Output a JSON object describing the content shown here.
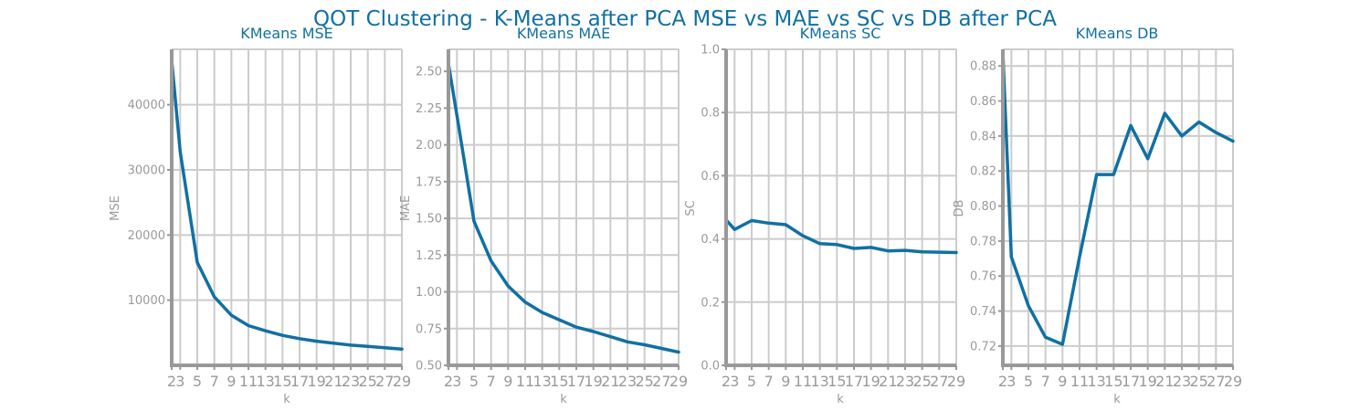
{
  "figure": {
    "title": "QOT Clustering - K-Means after PCA MSE vs MAE vs SC vs DB after PCA"
  },
  "chart_data": [
    {
      "type": "line",
      "title": "KMeans MSE",
      "xlabel": "k",
      "ylabel": "MSE",
      "x": [
        2,
        3,
        5,
        7,
        9,
        11,
        13,
        15,
        17,
        19,
        21,
        23,
        25,
        27,
        29
      ],
      "xticks": [
        2,
        3,
        5,
        7,
        9,
        11,
        13,
        15,
        17,
        19,
        21,
        23,
        25,
        27,
        29
      ],
      "xlim": [
        2,
        29
      ],
      "ylim": [
        0,
        48500
      ],
      "yticks": [
        10000,
        20000,
        30000,
        40000
      ],
      "ytick_labels": [
        "10000",
        "20000",
        "30000",
        "40000"
      ],
      "grid": true,
      "series": [
        {
          "values": [
            46800,
            32800,
            15800,
            10500,
            7700,
            6100,
            5300,
            4600,
            4100,
            3700,
            3400,
            3100,
            2900,
            2700,
            2500
          ]
        }
      ]
    },
    {
      "type": "line",
      "title": "KMeans MAE",
      "xlabel": "k",
      "ylabel": "MAE",
      "x": [
        2,
        3,
        5,
        7,
        9,
        11,
        13,
        15,
        17,
        19,
        21,
        23,
        25,
        27,
        29
      ],
      "xticks": [
        2,
        3,
        5,
        7,
        9,
        11,
        13,
        15,
        17,
        19,
        21,
        23,
        25,
        27,
        29
      ],
      "xlim": [
        2,
        29
      ],
      "ylim": [
        0.5,
        2.65
      ],
      "yticks": [
        0.5,
        0.75,
        1.0,
        1.25,
        1.5,
        1.75,
        2.0,
        2.25,
        2.5
      ],
      "ytick_labels": [
        "0.50",
        "0.75",
        "1.00",
        "1.25",
        "1.50",
        "1.75",
        "2.00",
        "2.25",
        "2.50"
      ],
      "grid": true,
      "series": [
        {
          "values": [
            2.55,
            2.2,
            1.48,
            1.21,
            1.04,
            0.93,
            0.86,
            0.81,
            0.76,
            0.73,
            0.695,
            0.66,
            0.64,
            0.615,
            0.59
          ]
        }
      ]
    },
    {
      "type": "line",
      "title": "KMeans SC",
      "xlabel": "k",
      "ylabel": "SC",
      "x": [
        2,
        3,
        5,
        7,
        9,
        11,
        13,
        15,
        17,
        19,
        21,
        23,
        25,
        27,
        29
      ],
      "xticks": [
        2,
        3,
        5,
        7,
        9,
        11,
        13,
        15,
        17,
        19,
        21,
        23,
        25,
        27,
        29
      ],
      "xlim": [
        2,
        29
      ],
      "ylim": [
        0.0,
        1.0
      ],
      "yticks": [
        0.0,
        0.2,
        0.4,
        0.6,
        0.8,
        1.0
      ],
      "ytick_labels": [
        "0.0",
        "0.2",
        "0.4",
        "0.6",
        "0.8",
        "1.0"
      ],
      "grid": true,
      "series": [
        {
          "values": [
            0.46,
            0.43,
            0.458,
            0.45,
            0.445,
            0.41,
            0.385,
            0.382,
            0.37,
            0.373,
            0.362,
            0.364,
            0.359,
            0.358,
            0.357
          ]
        }
      ]
    },
    {
      "type": "line",
      "title": "KMeans DB",
      "xlabel": "k",
      "ylabel": "DB",
      "x": [
        2,
        3,
        5,
        7,
        9,
        11,
        13,
        15,
        17,
        19,
        21,
        23,
        25,
        27,
        29
      ],
      "xticks": [
        2,
        3,
        5,
        7,
        9,
        11,
        13,
        15,
        17,
        19,
        21,
        23,
        25,
        27,
        29
      ],
      "xlim": [
        2,
        29
      ],
      "ylim": [
        0.709,
        0.8895
      ],
      "yticks": [
        0.72,
        0.74,
        0.76,
        0.78,
        0.8,
        0.82,
        0.84,
        0.86,
        0.88
      ],
      "ytick_labels": [
        "0.72",
        "0.74",
        "0.76",
        "0.78",
        "0.80",
        "0.82",
        "0.84",
        "0.86",
        "0.88"
      ],
      "grid": true,
      "series": [
        {
          "values": [
            0.888,
            0.771,
            0.743,
            0.725,
            0.721,
            0.771,
            0.818,
            0.818,
            0.846,
            0.827,
            0.853,
            0.84,
            0.848,
            0.842,
            0.837
          ]
        }
      ]
    }
  ]
}
